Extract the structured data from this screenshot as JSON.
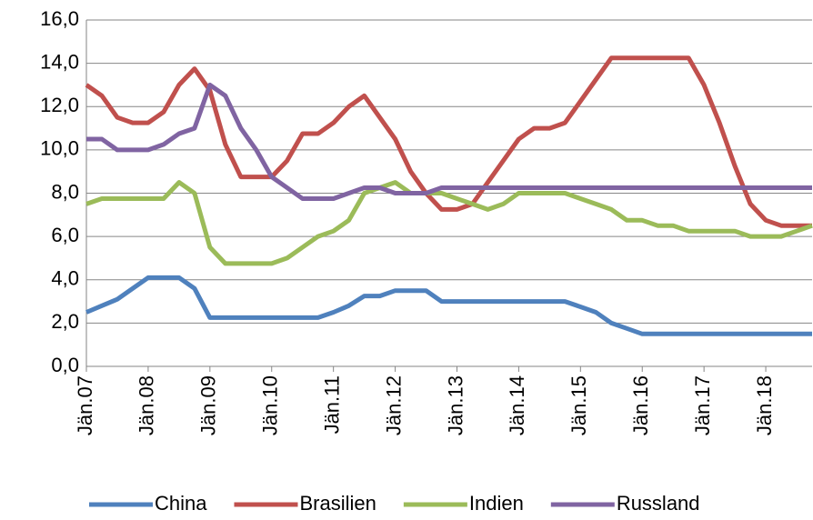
{
  "chart_data": {
    "type": "line",
    "categories": [
      "Jän.07",
      null,
      null,
      null,
      "Jän.08",
      null,
      null,
      null,
      "Jän.09",
      null,
      null,
      null,
      "Jän.10",
      null,
      null,
      null,
      "Jän.11",
      null,
      null,
      null,
      "Jän.12",
      null,
      null,
      null,
      "Jän.13",
      null,
      null,
      null,
      "Jän.14",
      null,
      null,
      null,
      "Jän.15",
      null,
      null,
      null,
      "Jän.16",
      null,
      null,
      null,
      "Jän.17",
      null,
      null,
      null,
      "Jän.18",
      null,
      null,
      null
    ],
    "series": [
      {
        "name": "China",
        "color": "#4f81bd",
        "values": [
          2.5,
          2.8,
          3.1,
          3.6,
          4.1,
          4.1,
          4.1,
          3.6,
          2.25,
          2.25,
          2.25,
          2.25,
          2.25,
          2.25,
          2.25,
          2.25,
          2.5,
          2.8,
          3.25,
          3.25,
          3.5,
          3.5,
          3.5,
          3.0,
          3.0,
          3.0,
          3.0,
          3.0,
          3.0,
          3.0,
          3.0,
          3.0,
          2.75,
          2.5,
          2.0,
          1.75,
          1.5,
          1.5,
          1.5,
          1.5,
          1.5,
          1.5,
          1.5,
          1.5,
          1.5,
          1.5,
          1.5,
          1.5
        ]
      },
      {
        "name": "Brasilien",
        "color": "#c0504d",
        "values": [
          13.0,
          12.5,
          11.5,
          11.25,
          11.25,
          11.75,
          13.0,
          13.75,
          12.75,
          10.25,
          8.75,
          8.75,
          8.75,
          9.5,
          10.75,
          10.75,
          11.25,
          12.0,
          12.5,
          11.5,
          10.5,
          9.0,
          8.0,
          7.25,
          7.25,
          7.5,
          8.5,
          9.5,
          10.5,
          11.0,
          11.0,
          11.25,
          12.25,
          13.25,
          14.25,
          14.25,
          14.25,
          14.25,
          14.25,
          14.25,
          13.0,
          11.25,
          9.25,
          7.5,
          6.75,
          6.5,
          6.5,
          6.5
        ]
      },
      {
        "name": "Indien",
        "color": "#9bbb59",
        "values": [
          7.5,
          7.75,
          7.75,
          7.75,
          7.75,
          7.75,
          8.5,
          8.0,
          5.5,
          4.75,
          4.75,
          4.75,
          4.75,
          5.0,
          5.5,
          6.0,
          6.25,
          6.75,
          8.0,
          8.25,
          8.5,
          8.0,
          8.0,
          8.0,
          7.75,
          7.5,
          7.25,
          7.5,
          8.0,
          8.0,
          8.0,
          8.0,
          7.75,
          7.5,
          7.25,
          6.75,
          6.75,
          6.5,
          6.5,
          6.25,
          6.25,
          6.25,
          6.25,
          6.0,
          6.0,
          6.0,
          6.25,
          6.5
        ]
      },
      {
        "name": "Russland",
        "color": "#8064a2",
        "values": [
          10.5,
          10.5,
          10.0,
          10.0,
          10.0,
          10.25,
          10.75,
          11.0,
          13.0,
          12.5,
          11.0,
          10.0,
          8.75,
          8.25,
          7.75,
          7.75,
          7.75,
          8.0,
          8.25,
          8.25,
          8.0,
          8.0,
          8.0,
          8.25,
          8.25,
          8.25,
          8.25,
          8.25,
          8.25,
          8.25,
          8.25,
          8.25,
          8.25,
          8.25,
          8.25,
          8.25,
          8.25,
          8.25,
          8.25,
          8.25,
          8.25,
          8.25,
          8.25,
          8.25,
          8.25,
          8.25,
          8.25,
          8.25
        ]
      }
    ],
    "ylim": [
      0,
      16
    ],
    "yticks": [
      {
        "value": 0,
        "label": "0,0"
      },
      {
        "value": 2,
        "label": "2,0"
      },
      {
        "value": 4,
        "label": "4,0"
      },
      {
        "value": 6,
        "label": "6,0"
      },
      {
        "value": 8,
        "label": "8,0"
      },
      {
        "value": 10,
        "label": "10,0"
      },
      {
        "value": 12,
        "label": "12,0"
      },
      {
        "value": 14,
        "label": "14,0"
      },
      {
        "value": 16,
        "label": "16,0"
      }
    ],
    "grid": true,
    "legend": "bottom"
  }
}
